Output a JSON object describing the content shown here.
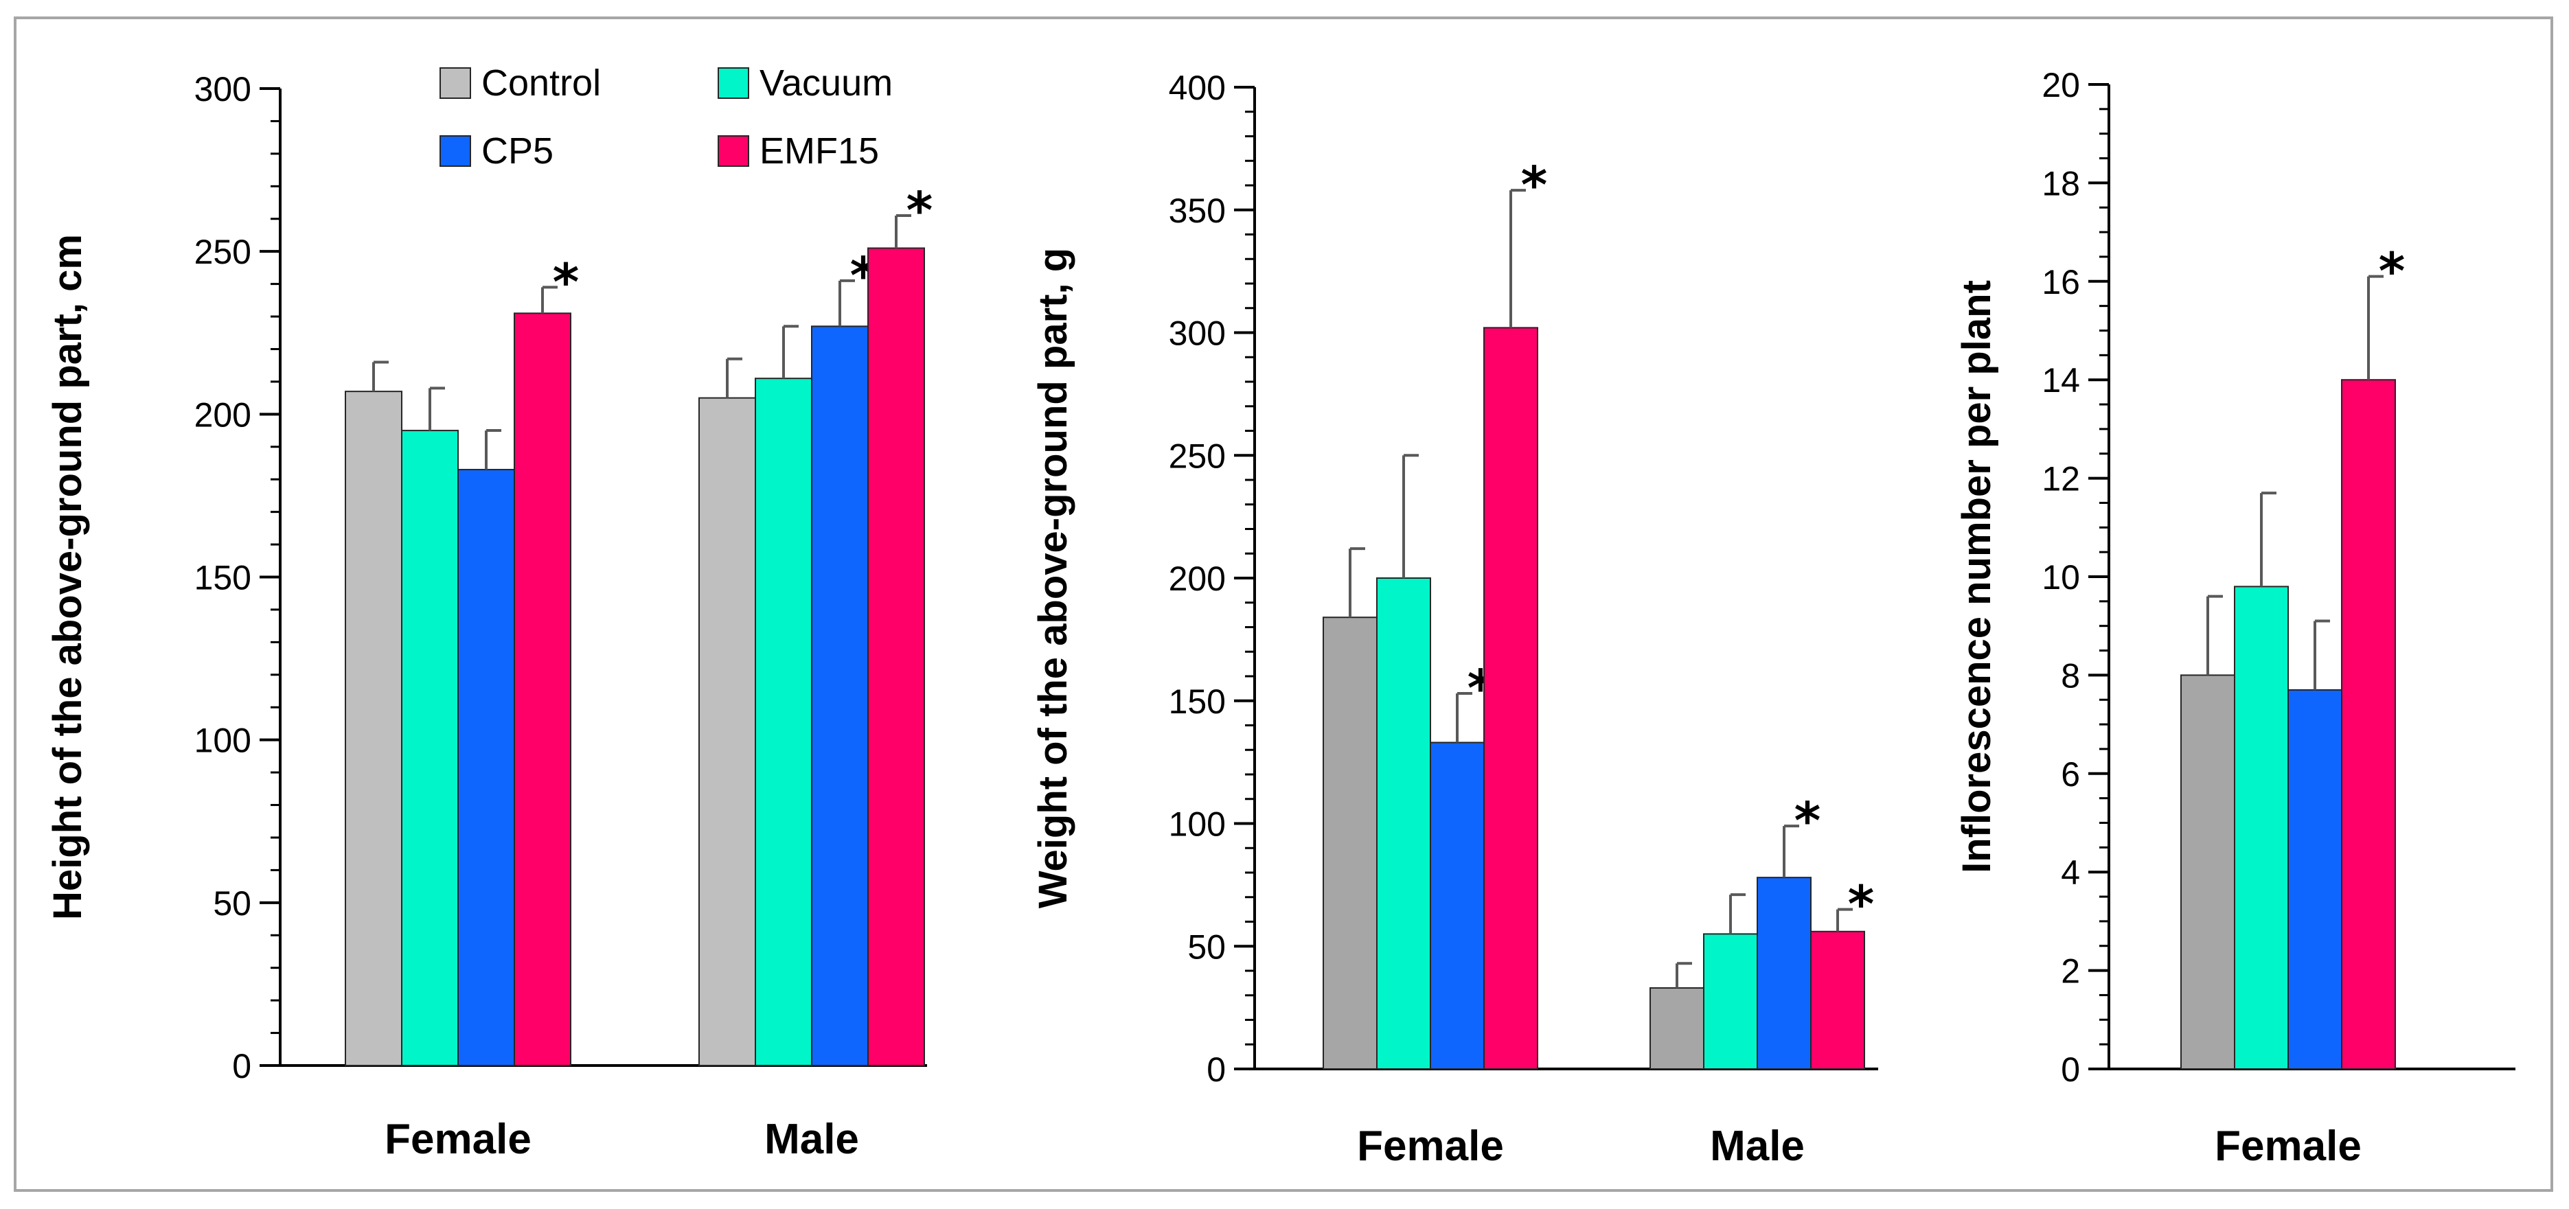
{
  "legend": {
    "items": [
      {
        "label": "Control",
        "color": "#bfbfbf"
      },
      {
        "label": "Vacuum",
        "color": "#00f5c8"
      },
      {
        "label": "CP5",
        "color": "#0f66ff"
      },
      {
        "label": "EMF15",
        "color": "#ff0068"
      }
    ]
  },
  "chart_data": [
    {
      "type": "bar",
      "ylabel": "Height of the above-ground part, cm",
      "ylim": [
        0,
        300
      ],
      "yticks": [
        0,
        50,
        100,
        150,
        200,
        250,
        300
      ],
      "minor_tick_step": 10,
      "categories": [
        "Female",
        "Male"
      ],
      "series": [
        {
          "name": "Control",
          "color": "#bfbfbf",
          "values": [
            207,
            205
          ],
          "errors": [
            9,
            12
          ],
          "significant": [
            false,
            false
          ]
        },
        {
          "name": "Vacuum",
          "color": "#00f5c8",
          "values": [
            195,
            211
          ],
          "errors": [
            13,
            16
          ],
          "significant": [
            false,
            false
          ]
        },
        {
          "name": "CP5",
          "color": "#0f66ff",
          "values": [
            183,
            227
          ],
          "errors": [
            12,
            14
          ],
          "significant": [
            false,
            true
          ]
        },
        {
          "name": "EMF15",
          "color": "#ff0068",
          "values": [
            231,
            251
          ],
          "errors": [
            8,
            10
          ],
          "significant": [
            true,
            true
          ]
        }
      ],
      "significance_marker": "*"
    },
    {
      "type": "bar",
      "ylabel": "Weight of the above-ground part, g",
      "ylim": [
        0,
        400
      ],
      "yticks": [
        0,
        50,
        100,
        150,
        200,
        250,
        300,
        350,
        400
      ],
      "minor_tick_step": 10,
      "categories": [
        "Female",
        "Male"
      ],
      "series": [
        {
          "name": "Control",
          "color": "#a6a6a6",
          "values": [
            184,
            33
          ],
          "errors": [
            28,
            10
          ],
          "significant": [
            false,
            false
          ]
        },
        {
          "name": "Vacuum",
          "color": "#00f5c8",
          "values": [
            200,
            55
          ],
          "errors": [
            50,
            16
          ],
          "significant": [
            false,
            false
          ]
        },
        {
          "name": "CP5",
          "color": "#0f66ff",
          "values": [
            133,
            78
          ],
          "errors": [
            20,
            21
          ],
          "significant": [
            true,
            true
          ]
        },
        {
          "name": "EMF15",
          "color": "#ff0068",
          "values": [
            302,
            56
          ],
          "errors": [
            56,
            9
          ],
          "significant": [
            true,
            true
          ]
        }
      ],
      "significance_marker": "*"
    },
    {
      "type": "bar",
      "ylabel": "Inflorescence number per plant",
      "ylim": [
        0,
        20
      ],
      "yticks": [
        0,
        2,
        4,
        6,
        8,
        10,
        12,
        14,
        16,
        18,
        20
      ],
      "minor_tick_step": 0.5,
      "categories": [
        "Female"
      ],
      "series": [
        {
          "name": "Control",
          "color": "#a6a6a6",
          "values": [
            8
          ],
          "errors": [
            1.6
          ],
          "significant": [
            false
          ]
        },
        {
          "name": "Vacuum",
          "color": "#00f5c8",
          "values": [
            9.8
          ],
          "errors": [
            1.9
          ],
          "significant": [
            false
          ]
        },
        {
          "name": "CP5",
          "color": "#0f66ff",
          "values": [
            7.7
          ],
          "errors": [
            1.4
          ],
          "significant": [
            false
          ]
        },
        {
          "name": "EMF15",
          "color": "#ff0068",
          "values": [
            14
          ],
          "errors": [
            2.1
          ],
          "significant": [
            true
          ]
        }
      ],
      "significance_marker": "*"
    }
  ]
}
